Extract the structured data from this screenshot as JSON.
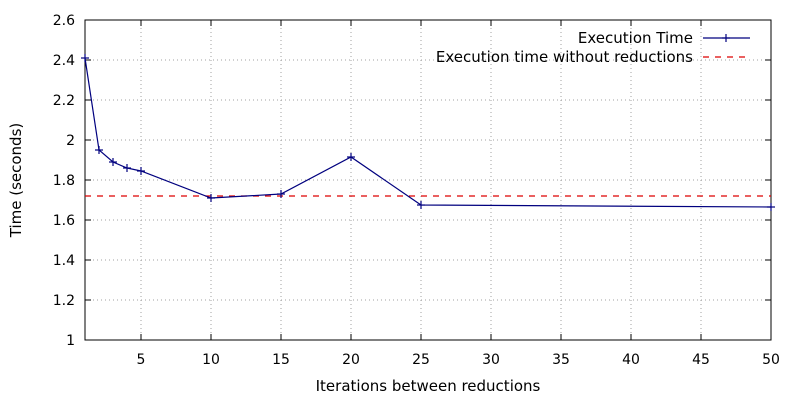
{
  "chart_data": {
    "type": "line",
    "title": "",
    "xlabel": "Iterations between reductions",
    "ylabel": "Time (seconds)",
    "xlim": [
      1,
      50
    ],
    "ylim": [
      1,
      2.6
    ],
    "x_ticks": [
      5,
      10,
      15,
      20,
      25,
      30,
      35,
      40,
      45,
      50
    ],
    "y_ticks": [
      1,
      1.2,
      1.4,
      1.6,
      1.8,
      2,
      2.2,
      2.4,
      2.6
    ],
    "x_tick_labels": [
      "5",
      "10",
      "15",
      "20",
      "25",
      "30",
      "35",
      "40",
      "45",
      "50"
    ],
    "y_tick_labels": [
      "1",
      "1.2",
      "1.4",
      "1.6",
      "1.8",
      "2",
      "2.2",
      "2.4",
      "2.6"
    ],
    "grid": true,
    "legend_position": "top-right",
    "series": [
      {
        "name": "Execution Time",
        "color": "#00007f",
        "style": "solid-with-plus-markers",
        "x": [
          1,
          2,
          3,
          4,
          5,
          10,
          15,
          20,
          25,
          50
        ],
        "y": [
          2.41,
          1.95,
          1.89,
          1.86,
          1.845,
          1.71,
          1.73,
          1.915,
          1.675,
          1.665
        ]
      },
      {
        "name": "Execution time without reductions",
        "color": "#dd0000",
        "style": "dashed",
        "x": [
          1,
          50
        ],
        "y": [
          1.72,
          1.72
        ]
      }
    ]
  }
}
